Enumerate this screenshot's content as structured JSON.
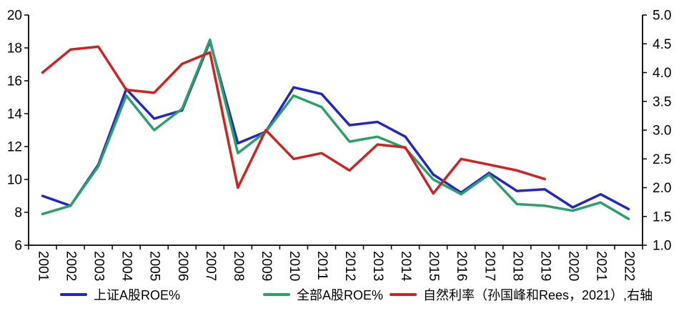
{
  "page": {
    "background": "#ffffff"
  },
  "chart_data": {
    "type": "line",
    "title": "",
    "categories": [
      "2001",
      "2002",
      "2003",
      "2004",
      "2005",
      "2006",
      "2007",
      "2008",
      "2009",
      "2010",
      "2011",
      "2012",
      "2013",
      "2014",
      "2015",
      "2016",
      "2017",
      "2018",
      "2019",
      "2020",
      "2021",
      "2022"
    ],
    "series": [
      {
        "key": "shanghai-a-share-roe",
        "name": "上证A股ROE%",
        "color": "#2228BE",
        "axis": "left",
        "values": [
          9.0,
          8.4,
          10.9,
          15.5,
          13.7,
          14.2,
          18.4,
          12.2,
          12.9,
          15.6,
          15.2,
          13.3,
          13.5,
          12.6,
          10.3,
          9.2,
          10.4,
          9.3,
          9.4,
          8.3,
          9.1,
          8.2
        ]
      },
      {
        "key": "all-a-share-roe",
        "name": "全部A股ROE%",
        "color": "#2DA069",
        "axis": "left",
        "values": [
          7.9,
          8.4,
          10.8,
          15.1,
          13.0,
          14.3,
          18.5,
          11.6,
          12.9,
          15.1,
          14.4,
          12.3,
          12.6,
          11.9,
          10.0,
          9.1,
          10.3,
          8.5,
          8.4,
          8.1,
          8.6,
          7.6
        ]
      },
      {
        "key": "natural-rate",
        "name": "自然利率（孙国峰和Rees，2021）,右轴",
        "color": "#CD2323",
        "axis": "right",
        "values": [
          4.0,
          4.4,
          4.45,
          3.7,
          3.65,
          4.15,
          4.35,
          2.0,
          3.0,
          2.5,
          2.6,
          2.3,
          2.75,
          2.7,
          1.9,
          2.5,
          2.4,
          2.3,
          2.15,
          null,
          null,
          null
        ]
      }
    ],
    "left_axis": {
      "labels": [
        "20",
        "18",
        "16",
        "14",
        "12",
        "10",
        "8",
        "6"
      ],
      "min": 6,
      "max": 20,
      "step": 2
    },
    "right_axis": {
      "labels": [
        "5.0",
        "4.5",
        "4.0",
        "3.5",
        "3.0",
        "2.5",
        "2.0",
        "1.5",
        "1.0"
      ],
      "min": 1.0,
      "max": 5.0,
      "step": 0.5
    },
    "grid": false,
    "legend_position": "bottom",
    "axis_color": "#000000",
    "text_color": "#000000"
  }
}
